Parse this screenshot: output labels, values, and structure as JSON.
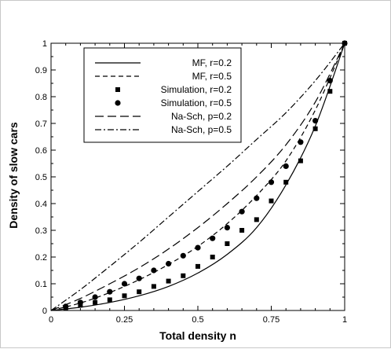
{
  "chart_data": {
    "type": "line",
    "xlabel": "Total density n",
    "ylabel": "Density of slow cars",
    "xlim": [
      0,
      1
    ],
    "ylim": [
      0,
      1
    ],
    "x_ticks": [
      0,
      0.25,
      0.5,
      0.75,
      1
    ],
    "x_tick_labels": [
      "0",
      "0.25",
      "0.5",
      "0.75",
      "1"
    ],
    "y_ticks": [
      0,
      0.1,
      0.2,
      0.3,
      0.4,
      0.5,
      0.6,
      0.7,
      0.8,
      0.9,
      1
    ],
    "y_tick_labels": [
      "0",
      "0.1",
      "0.2",
      "0.3",
      "0.4",
      "0.5",
      "0.6",
      "0.7",
      "0.8",
      "0.9",
      "1"
    ],
    "grid": false,
    "legend_position": "top-left (inside)",
    "series": [
      {
        "name": "MF, r=0.2",
        "style": "solid",
        "x": [
          0,
          0.1,
          0.2,
          0.3,
          0.4,
          0.5,
          0.6,
          0.7,
          0.8,
          0.9,
          1.0
        ],
        "y": [
          0,
          0.012,
          0.03,
          0.055,
          0.09,
          0.14,
          0.21,
          0.31,
          0.47,
          0.69,
          1.0
        ]
      },
      {
        "name": "MF, r=0.5",
        "style": "dashed",
        "x": [
          0,
          0.1,
          0.2,
          0.3,
          0.4,
          0.5,
          0.6,
          0.7,
          0.8,
          0.9,
          1.0
        ],
        "y": [
          0,
          0.028,
          0.067,
          0.115,
          0.172,
          0.24,
          0.325,
          0.43,
          0.56,
          0.75,
          1.0
        ]
      },
      {
        "name": "Simulation, r=0.2",
        "style": "square-markers",
        "x": [
          0.05,
          0.1,
          0.15,
          0.2,
          0.25,
          0.3,
          0.35,
          0.4,
          0.45,
          0.5,
          0.55,
          0.6,
          0.65,
          0.7,
          0.75,
          0.8,
          0.85,
          0.9,
          0.95,
          1.0
        ],
        "y": [
          0.01,
          0.02,
          0.03,
          0.04,
          0.055,
          0.07,
          0.09,
          0.11,
          0.13,
          0.165,
          0.2,
          0.25,
          0.3,
          0.34,
          0.41,
          0.48,
          0.56,
          0.68,
          0.82,
          1.0
        ]
      },
      {
        "name": "Simulation, r=0.5",
        "style": "circle-markers",
        "x": [
          0.05,
          0.1,
          0.15,
          0.2,
          0.25,
          0.3,
          0.35,
          0.4,
          0.45,
          0.5,
          0.55,
          0.6,
          0.65,
          0.7,
          0.75,
          0.8,
          0.85,
          0.9,
          0.95,
          1.0
        ],
        "y": [
          0.015,
          0.03,
          0.05,
          0.07,
          0.1,
          0.12,
          0.15,
          0.175,
          0.205,
          0.235,
          0.27,
          0.31,
          0.37,
          0.42,
          0.48,
          0.54,
          0.63,
          0.71,
          0.86,
          1.0
        ]
      },
      {
        "name": "Na-Sch, p=0.2",
        "style": "long-dash",
        "x": [
          0,
          0.1,
          0.2,
          0.3,
          0.4,
          0.5,
          0.6,
          0.7,
          0.8,
          0.9,
          1.0
        ],
        "y": [
          0,
          0.045,
          0.1,
          0.16,
          0.23,
          0.31,
          0.4,
          0.5,
          0.62,
          0.78,
          1.0
        ]
      },
      {
        "name": "Na-Sch, p=0.5",
        "style": "dash-dot",
        "x": [
          0,
          0.1,
          0.2,
          0.3,
          0.4,
          0.5,
          0.6,
          0.7,
          0.8,
          0.9,
          1.0
        ],
        "y": [
          0,
          0.078,
          0.165,
          0.255,
          0.35,
          0.445,
          0.54,
          0.64,
          0.74,
          0.86,
          1.0
        ]
      }
    ]
  }
}
